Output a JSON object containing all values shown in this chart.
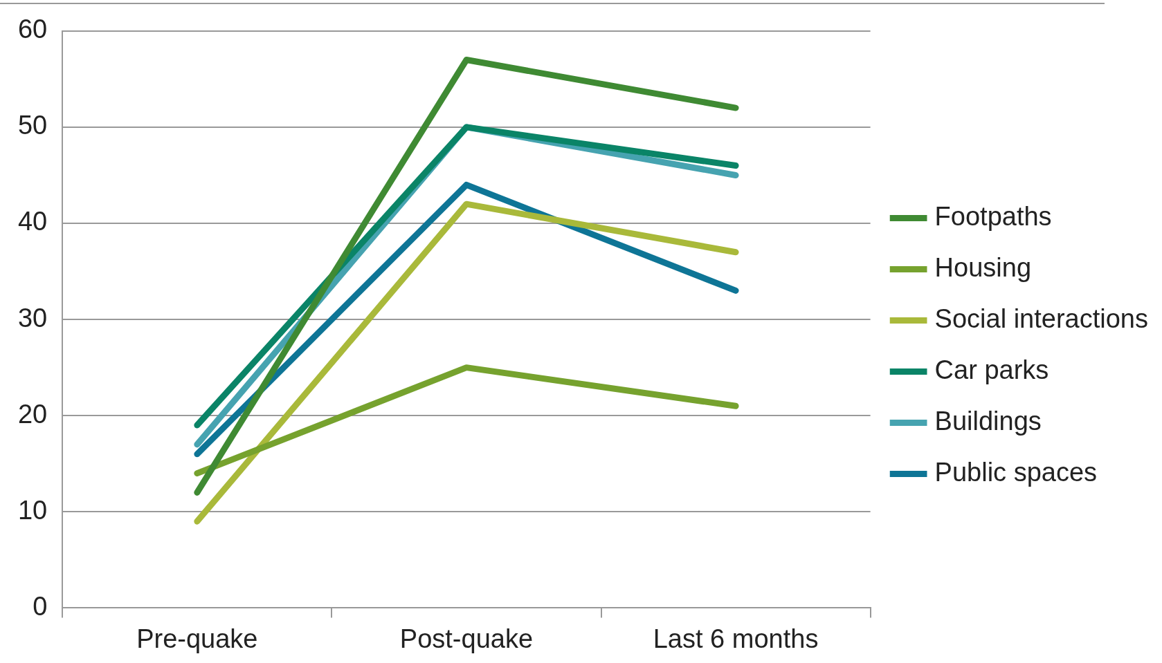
{
  "chart_data": {
    "type": "line",
    "categories": [
      "Pre-quake",
      "Post-quake",
      "Last 6 months"
    ],
    "series": [
      {
        "name": "Footpaths",
        "color": "#3f8a33",
        "values": [
          12,
          57,
          52
        ]
      },
      {
        "name": "Housing",
        "color": "#76a22e",
        "values": [
          14,
          25,
          21
        ]
      },
      {
        "name": "Social interactions",
        "color": "#a9b93a",
        "values": [
          9,
          42,
          37
        ]
      },
      {
        "name": "Car parks",
        "color": "#0a8467",
        "values": [
          19,
          50,
          46
        ]
      },
      {
        "name": "Buildings",
        "color": "#46a3b0",
        "values": [
          17,
          50,
          45
        ]
      },
      {
        "name": "Public spaces",
        "color": "#0e7596",
        "values": [
          16,
          44,
          33
        ]
      }
    ],
    "ylim": [
      0,
      60
    ],
    "yticks": [
      0,
      10,
      20,
      30,
      40,
      50,
      60
    ],
    "grid": "y",
    "legend": "right",
    "marker": "none",
    "line_style": "solid"
  }
}
